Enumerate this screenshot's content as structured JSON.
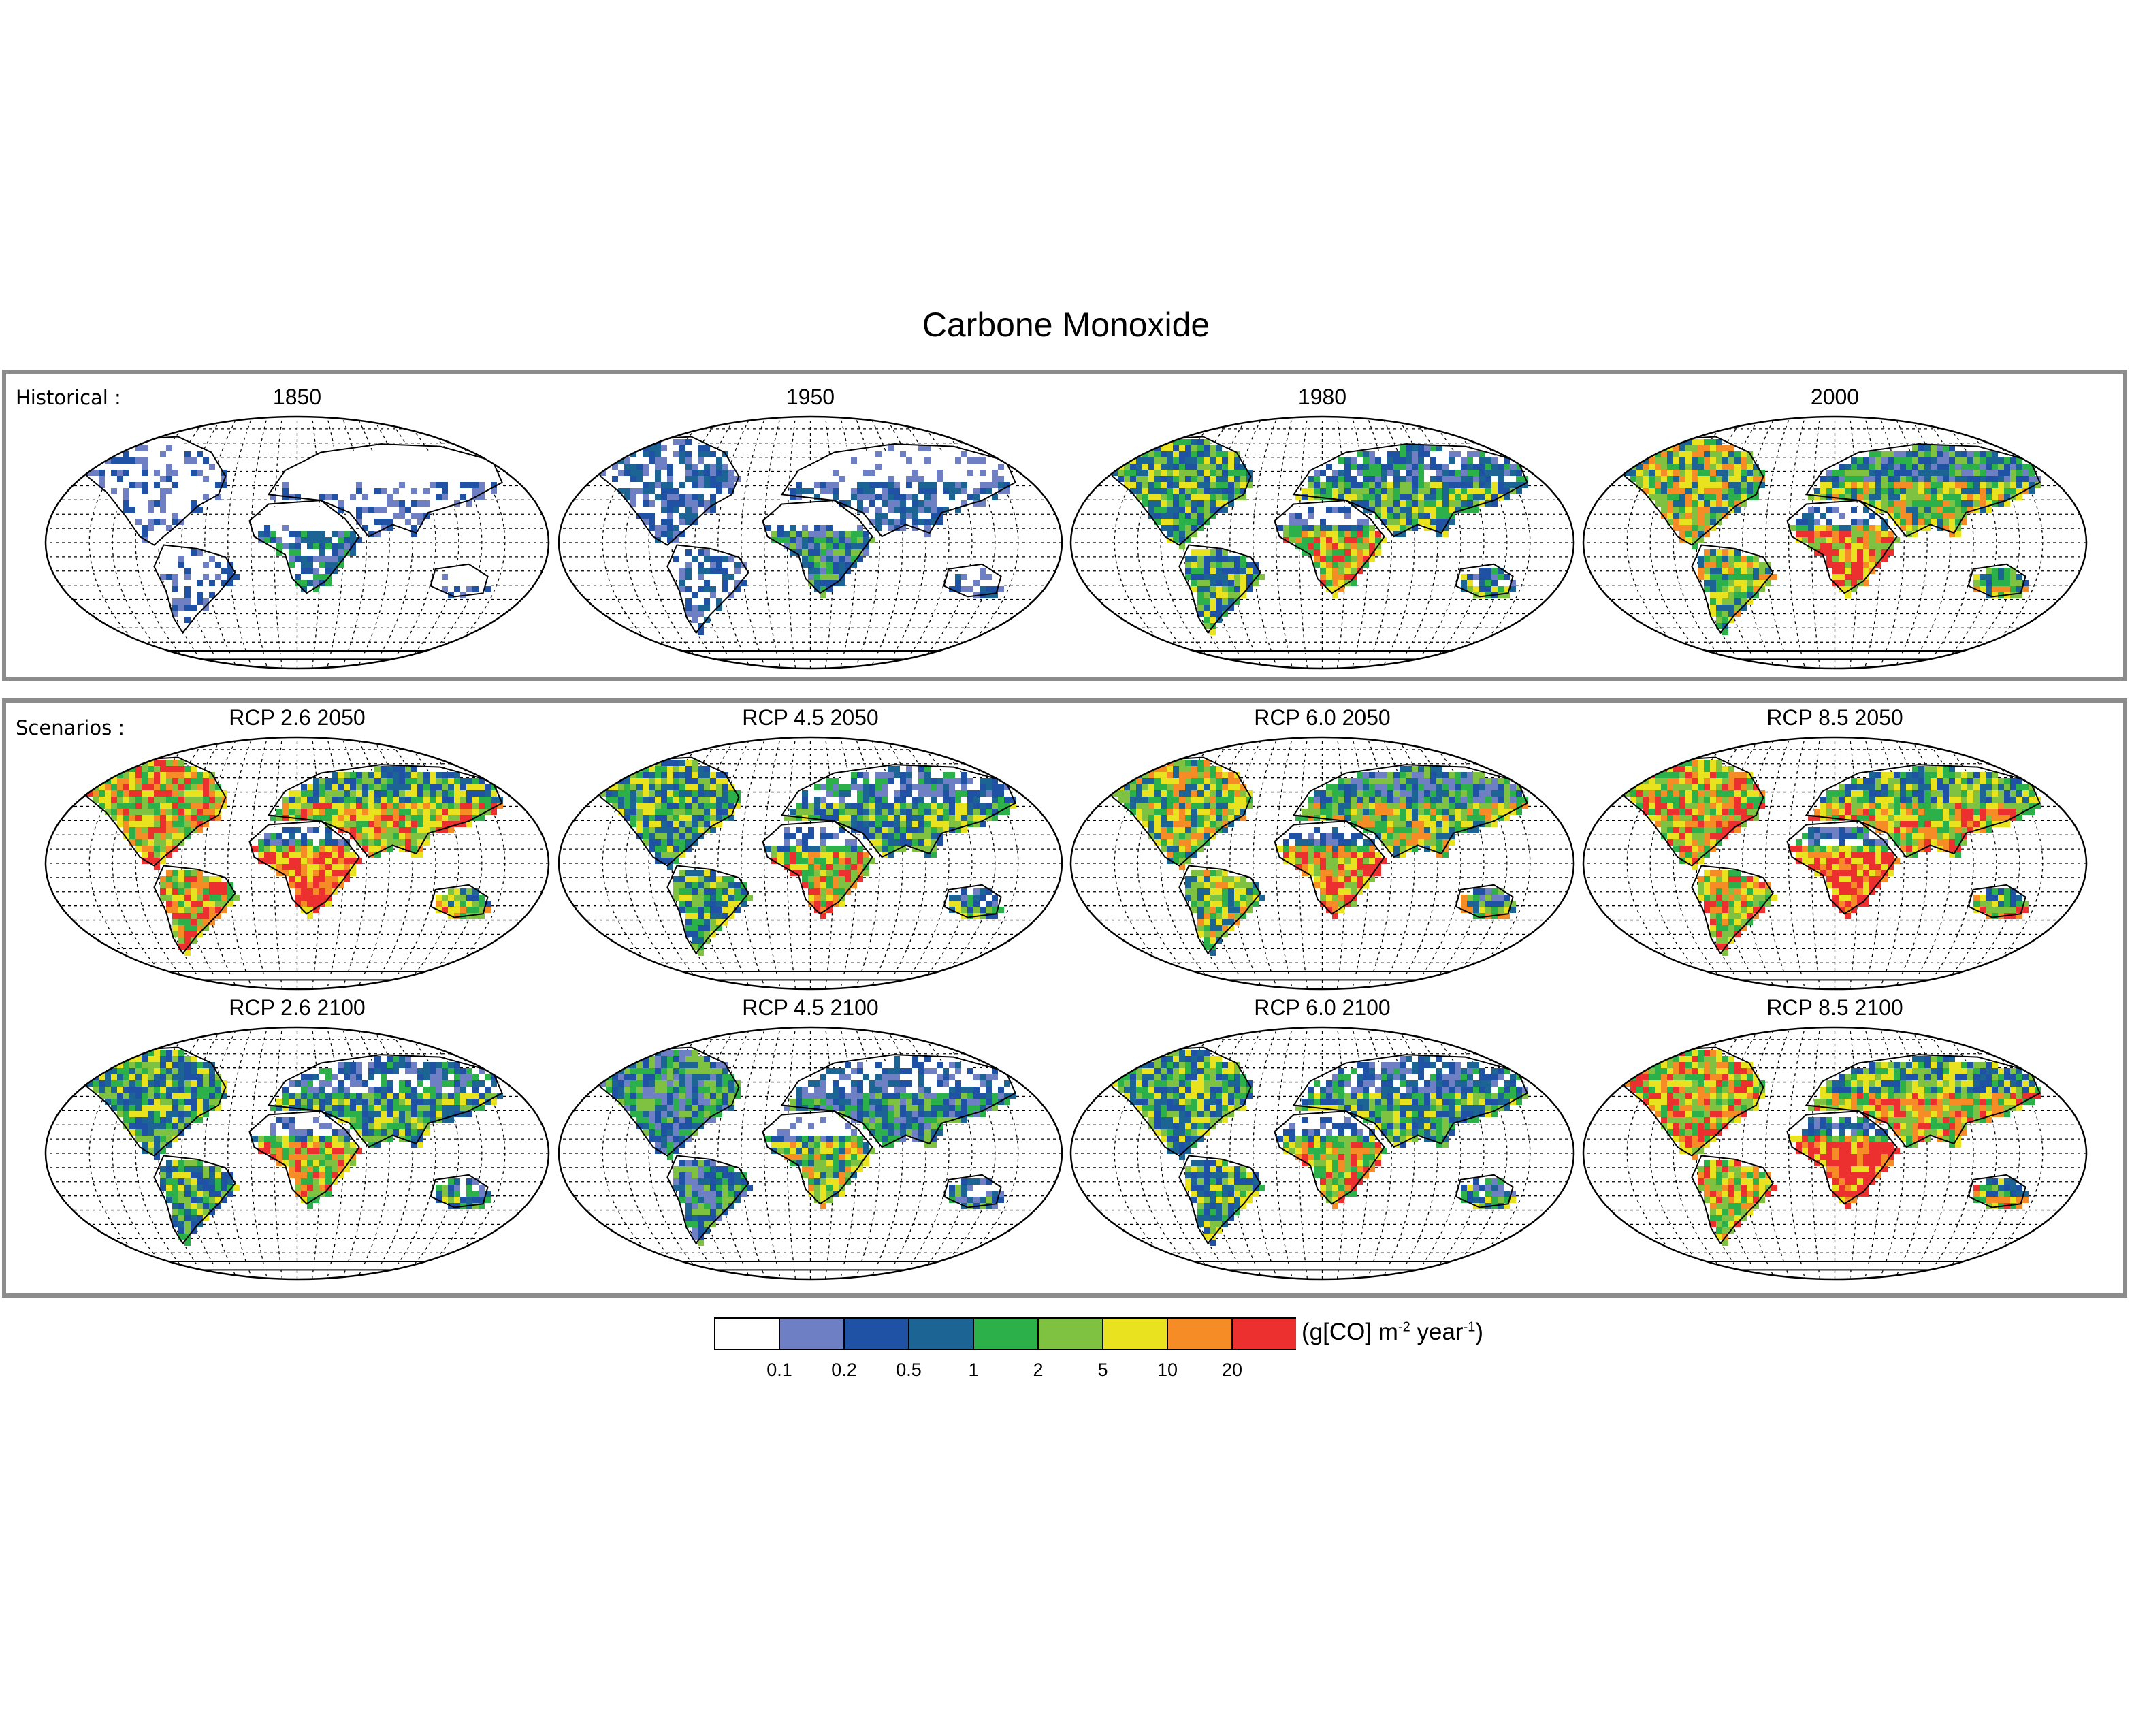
{
  "title": "Carbone Monoxide",
  "groups": {
    "historical": "Historical :",
    "scenarios": "Scenarios :"
  },
  "panels": [
    {
      "label": "1850",
      "period": "historical",
      "level": 0
    },
    {
      "label": "1950",
      "period": "historical",
      "level": 1
    },
    {
      "label": "1980",
      "period": "historical",
      "level": 4
    },
    {
      "label": "2000",
      "period": "historical",
      "level": 5
    },
    {
      "label": "RCP 2.6 2050",
      "period": "scenario",
      "level": 6
    },
    {
      "label": "RCP 4.5 2050",
      "period": "scenario",
      "level": 4
    },
    {
      "label": "RCP 6.0 2050",
      "period": "scenario",
      "level": 5
    },
    {
      "label": "RCP 8.5 2050",
      "period": "scenario",
      "level": 6
    },
    {
      "label": "RCP 2.6 2100",
      "period": "scenario",
      "level": 4
    },
    {
      "label": "RCP 4.5 2100",
      "period": "scenario",
      "level": 3
    },
    {
      "label": "RCP 6.0 2100",
      "period": "scenario",
      "level": 4
    },
    {
      "label": "RCP 8.5 2100",
      "period": "scenario",
      "level": 6
    }
  ],
  "colorbar": {
    "unit_text": "(g[CO] m",
    "unit_exp1": "-2",
    "unit_mid": " year",
    "unit_exp2": "-1",
    "unit_end": ")",
    "ticks": [
      "0.1",
      "0.2",
      "0.5",
      "1",
      "2",
      "5",
      "10",
      "20"
    ],
    "colors": [
      "#ffffff",
      "#6f7fc4",
      "#1f52a4",
      "#1b6494",
      "#2bb04a",
      "#7fc241",
      "#e9e31f",
      "#f58c25",
      "#ec2f2f"
    ]
  }
}
